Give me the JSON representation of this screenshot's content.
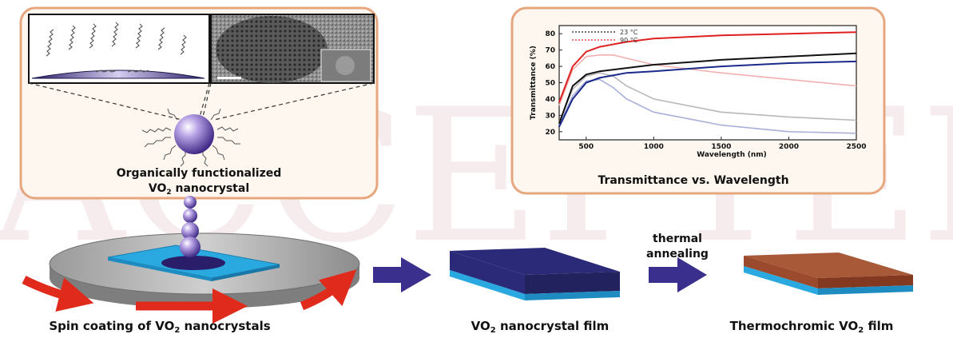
{
  "watermark": "ACCEPTED",
  "labels": {
    "nanocrystal_line1": "Organically functionalized",
    "nanocrystal_line2": "VO",
    "nanocrystal_sub": "2",
    "nanocrystal_line2b": " nanocrystal",
    "chart_caption": "Transmittance vs. Wavelength",
    "spin_prefix": "Spin coating of VO",
    "spin_sub": "2",
    "spin_suffix": " nanocrystals",
    "film_prefix": "VO",
    "film_sub": "2",
    "film_suffix": " nanocrystal film",
    "thermo_prefix": "Thermochromic VO",
    "thermo_sub": "2",
    "thermo_suffix": " film",
    "step_line1": "thermal",
    "step_line2": "annealing"
  },
  "colors": {
    "nanocrystal_film": "#2a2a78",
    "thermochromic_film": "#9b4a2e",
    "substrate": "#29a9e0",
    "arrow_process": "#3a2f8c",
    "arrow_spin": "#e02a1c"
  },
  "chart_data": {
    "type": "line",
    "xlabel": "Wavelength (nm)",
    "ylabel": "Transmittance (%)",
    "xlim": [
      300,
      2500
    ],
    "ylim": [
      15,
      85
    ],
    "xticks": [
      500,
      1000,
      1500,
      2000,
      2500
    ],
    "yticks": [
      20,
      30,
      40,
      50,
      60,
      70,
      80
    ],
    "legend": [
      {
        "label": "23 °C",
        "color": "#222222"
      },
      {
        "label": "90 °C",
        "color": "#e03030"
      }
    ],
    "series": [
      {
        "color": "#e02020",
        "x": [
          300,
          400,
          500,
          600,
          800,
          1000,
          1500,
          2000,
          2500
        ],
        "y": [
          38,
          60,
          69,
          72,
          75,
          77,
          79,
          80,
          81
        ]
      },
      {
        "color": "#111111",
        "x": [
          300,
          400,
          500,
          600,
          800,
          1000,
          1500,
          2000,
          2500
        ],
        "y": [
          25,
          48,
          55,
          57,
          59,
          61,
          64,
          66,
          68
        ]
      },
      {
        "color": "#1a2a8a",
        "x": [
          300,
          400,
          500,
          600,
          800,
          1000,
          1500,
          2000,
          2500
        ],
        "y": [
          23,
          40,
          50,
          53,
          56,
          57,
          60,
          62,
          63
        ]
      },
      {
        "color": "#f2b0b0",
        "x": [
          300,
          400,
          500,
          600,
          700,
          800,
          1000,
          1500,
          2000,
          2500
        ],
        "y": [
          36,
          58,
          66,
          67,
          67,
          65,
          61,
          56,
          52,
          48
        ]
      },
      {
        "color": "#b8b8b8",
        "x": [
          300,
          400,
          500,
          600,
          700,
          800,
          1000,
          1500,
          2000,
          2500
        ],
        "y": [
          26,
          46,
          54,
          56,
          54,
          48,
          40,
          32,
          29,
          27
        ]
      },
      {
        "color": "#aab0d8",
        "x": [
          300,
          400,
          500,
          600,
          700,
          800,
          1000,
          1500,
          2000,
          2500
        ],
        "y": [
          24,
          42,
          51,
          52,
          47,
          40,
          32,
          24,
          20,
          19
        ]
      }
    ]
  }
}
